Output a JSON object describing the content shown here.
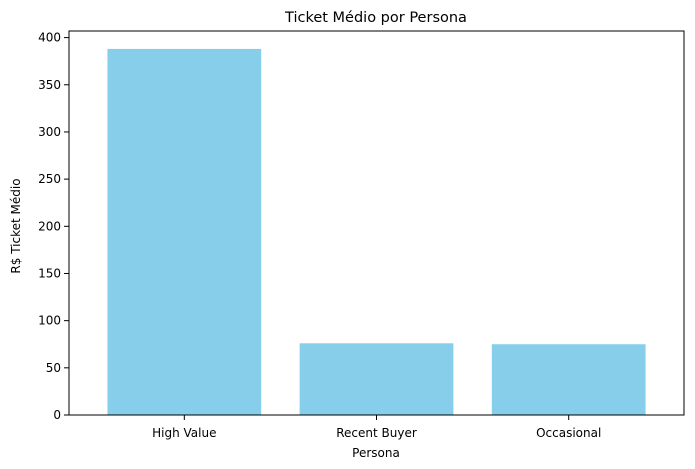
{
  "chart_data": {
    "type": "bar",
    "title": "Ticket Médio por Persona",
    "xlabel": "Persona",
    "ylabel": "R$ Ticket Médio",
    "categories": [
      "High Value",
      "Recent Buyer",
      "Occasional"
    ],
    "values": [
      388,
      76,
      75
    ],
    "ylim": [
      0,
      407
    ],
    "yticks": [
      0,
      50,
      100,
      150,
      200,
      250,
      300,
      350,
      400
    ],
    "bar_color": "#87CEEB",
    "grid": false,
    "legend": "none"
  }
}
